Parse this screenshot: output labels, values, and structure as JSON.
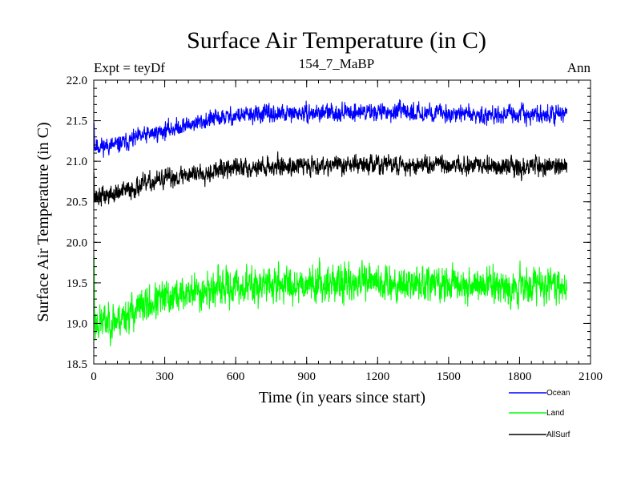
{
  "chart_data": {
    "type": "line",
    "title": "Surface Air Temperature (in C)",
    "subtitle_left": "Expt = teyDf",
    "subtitle_center": "154_7_MaBP",
    "subtitle_right": "Ann",
    "xlabel": "Time (in years since start)",
    "ylabel": "Surface Air Temperature (in C)",
    "xlim": [
      0,
      2100
    ],
    "ylim": [
      18.5,
      22.0
    ],
    "xticks": [
      0,
      300,
      600,
      900,
      1200,
      1500,
      1800,
      2100
    ],
    "xtick_labels": [
      "0",
      "300",
      "600",
      "900",
      "1200",
      "1500",
      "1800",
      "2100"
    ],
    "yticks": [
      18.5,
      19.0,
      19.5,
      20.0,
      20.5,
      21.0,
      21.5,
      22.0
    ],
    "ytick_labels": [
      "18.5",
      "19.0",
      "19.5",
      "20.0",
      "20.5",
      "21.0",
      "21.5",
      "22.0"
    ],
    "n_years": 2000,
    "series": [
      {
        "name": "Ocean",
        "color": "#0000ff",
        "trend_x": [
          0,
          100,
          200,
          300,
          400,
          500,
          600,
          700,
          800,
          900,
          1000,
          1200,
          1400,
          1600,
          1800,
          2000
        ],
        "trend_y": [
          21.18,
          21.2,
          21.3,
          21.38,
          21.45,
          21.52,
          21.56,
          21.58,
          21.58,
          21.59,
          21.6,
          21.61,
          21.6,
          21.58,
          21.57,
          21.58
        ],
        "noise": 0.08,
        "seed": 11
      },
      {
        "name": "Land",
        "color": "#00ff00",
        "trend_x": [
          0,
          100,
          200,
          300,
          400,
          500,
          600,
          700,
          800,
          900,
          1000,
          1200,
          1400,
          1600,
          1800,
          2000
        ],
        "trend_y": [
          19.0,
          19.05,
          19.2,
          19.3,
          19.38,
          19.42,
          19.45,
          19.47,
          19.48,
          19.5,
          19.5,
          19.5,
          19.49,
          19.48,
          19.47,
          19.48
        ],
        "noise": 0.17,
        "seed": 23
      },
      {
        "name": "AllSurf",
        "color": "#000000",
        "trend_x": [
          0,
          100,
          200,
          300,
          400,
          500,
          600,
          700,
          800,
          900,
          1000,
          1200,
          1400,
          1600,
          1800,
          2000
        ],
        "trend_y": [
          20.55,
          20.6,
          20.7,
          20.78,
          20.84,
          20.88,
          20.92,
          20.93,
          20.94,
          20.95,
          20.96,
          20.96,
          20.95,
          20.94,
          20.93,
          20.95
        ],
        "noise": 0.09,
        "seed": 37
      }
    ],
    "legend": [
      {
        "label": "Ocean",
        "color": "#0000ff"
      },
      {
        "label": "Land",
        "color": "#00ff00"
      },
      {
        "label": "AllSurf",
        "color": "#000000"
      }
    ],
    "legend_position": "bottom-right"
  }
}
